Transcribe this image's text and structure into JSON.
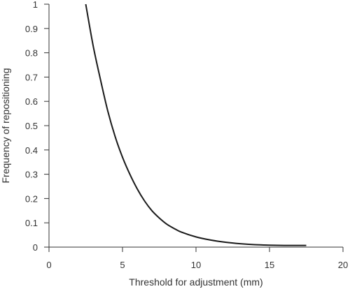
{
  "chart_data": {
    "type": "line",
    "title": "",
    "xlabel": "Threshold for adjustment (mm)",
    "ylabel": "Frequency of repositioning",
    "xlim": [
      0,
      20
    ],
    "ylim": [
      0,
      1
    ],
    "x_ticks": [
      0,
      5,
      10,
      15,
      20
    ],
    "x_tick_labels": [
      "0",
      "5",
      "10",
      "15",
      "20"
    ],
    "y_ticks": [
      0,
      0.1,
      0.2,
      0.3,
      0.4,
      0.5,
      0.6,
      0.7,
      0.8,
      0.9,
      1
    ],
    "y_tick_labels": [
      "0",
      "0.1",
      "0.2",
      "0.3",
      "0.4",
      "0.5",
      "0.6",
      "0.7",
      "0.8",
      "0.9",
      "1"
    ],
    "grid": false,
    "legend": "none",
    "line_color": "#1a1a1a",
    "series": [
      {
        "x": [
          2.5,
          3,
          3.5,
          4,
          4.5,
          5,
          5.5,
          6,
          6.5,
          7,
          7.5,
          8,
          8.5,
          9,
          10,
          11,
          12,
          13,
          14,
          15,
          16,
          17,
          17.5
        ],
        "values": [
          1.0,
          0.83,
          0.69,
          0.56,
          0.455,
          0.37,
          0.3,
          0.24,
          0.19,
          0.15,
          0.12,
          0.095,
          0.077,
          0.062,
          0.042,
          0.029,
          0.02,
          0.014,
          0.01,
          0.008,
          0.007,
          0.007,
          0.007
        ]
      }
    ]
  }
}
